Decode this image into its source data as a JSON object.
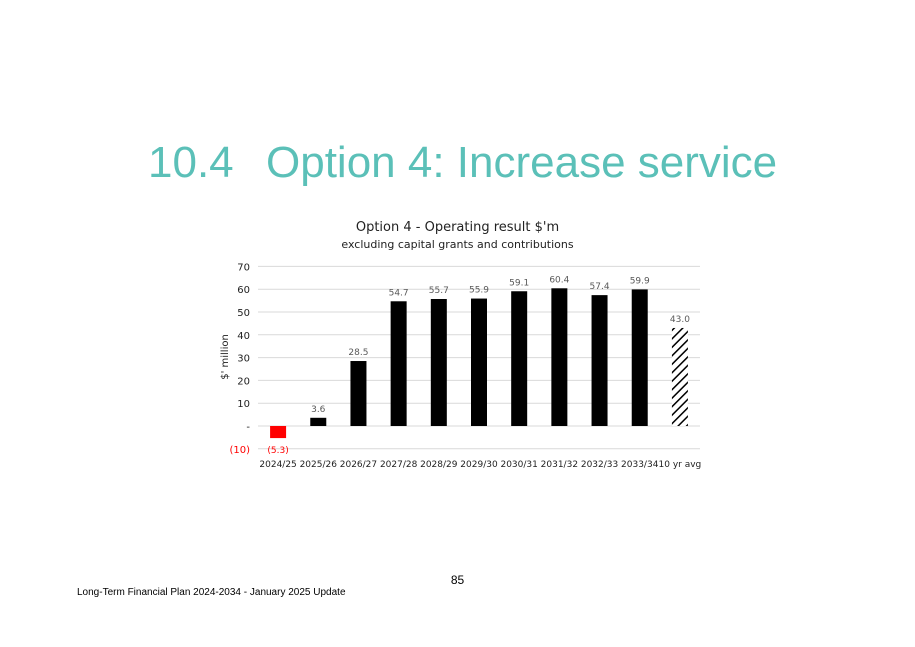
{
  "section_heading": {
    "number": "10.4",
    "title": "Option 4: Increase service"
  },
  "chart_data": {
    "type": "bar",
    "title": "Option 4 - Operating result $'m",
    "subtitle": "excluding capital grants and contributions",
    "ylabel": "$' million",
    "xlabel": "",
    "ylim": [
      -10,
      70
    ],
    "yticks": [
      -10,
      0,
      10,
      20,
      30,
      40,
      50,
      60,
      70
    ],
    "ytick_labels": [
      "(10)",
      "-",
      "10",
      "20",
      "30",
      "40",
      "50",
      "60",
      "70"
    ],
    "grid": true,
    "categories": [
      "2024/25",
      "2025/26",
      "2026/27",
      "2027/28",
      "2028/29",
      "2029/30",
      "2030/31",
      "2031/32",
      "2032/33",
      "2033/34",
      "10 yr avg"
    ],
    "values": [
      -5.3,
      3.6,
      28.5,
      54.7,
      55.7,
      55.9,
      59.1,
      60.4,
      57.4,
      59.9,
      43.0
    ],
    "data_labels": [
      "(5.3)",
      "3.6",
      "28.5",
      "54.7",
      "55.7",
      "55.9",
      "59.1",
      "60.4",
      "57.4",
      "59.9",
      "43.0"
    ],
    "colors": {
      "positive": "#000000",
      "negative": "#ff0000",
      "negative_text": "#ff0000",
      "average_pattern": "hatched black",
      "grid": "#d9d9d9",
      "label_text": "#595959"
    }
  },
  "page_number": "85",
  "footer_text": "Long-Term Financial Plan 2024-2034 - January 2025 Update"
}
